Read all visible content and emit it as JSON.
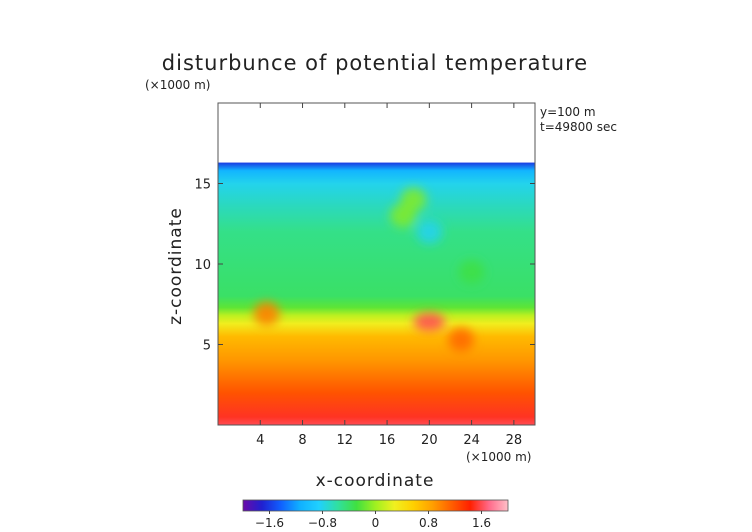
{
  "chart_data": {
    "type": "heatmap",
    "title": "disturbunce of potential temperature",
    "xlabel": "x-coordinate",
    "ylabel": "z-coordinate",
    "x_unit": "(×1000 m)",
    "y_unit": "(×1000 m)",
    "annotations": [
      "y=100 m",
      "t=49800 sec"
    ],
    "xlim": [
      0,
      30
    ],
    "ylim": [
      0,
      20
    ],
    "x_ticks": [
      4,
      8,
      12,
      16,
      20,
      24,
      28
    ],
    "y_ticks": [
      5,
      10,
      15
    ],
    "colorbar": {
      "range": [
        -2,
        2
      ],
      "ticks": [
        -1.6,
        -0.8,
        0,
        0.8,
        1.6
      ],
      "tick_labels": [
        "−1.6",
        "−0.8",
        "0",
        "0.8",
        "1.6"
      ],
      "colors": [
        "#6a0aa8",
        "#2020d0",
        "#1060ff",
        "#10b0ff",
        "#20d0ff",
        "#30e0a0",
        "#40e040",
        "#a0f020",
        "#f0f020",
        "#ffd000",
        "#ffa000",
        "#ff6000",
        "#ff2000",
        "#ff6a8a",
        "#ffc0c8"
      ]
    },
    "field_top_z": 16.3,
    "field_profile": [
      {
        "z": 16.3,
        "value": -1.6
      },
      {
        "z": 15.8,
        "value": -1.1
      },
      {
        "z": 15.0,
        "value": -0.8
      },
      {
        "z": 12.0,
        "value": -0.5
      },
      {
        "z": 8.0,
        "value": -0.4
      },
      {
        "z": 7.3,
        "value": -0.2
      },
      {
        "z": 6.8,
        "value": 0.1
      },
      {
        "z": 6.3,
        "value": 0.3
      },
      {
        "z": 5.5,
        "value": 0.7
      },
      {
        "z": 4.0,
        "value": 0.9
      },
      {
        "z": 2.0,
        "value": 1.2
      },
      {
        "z": 0.5,
        "value": 1.5
      },
      {
        "z": 0.0,
        "value": 1.6
      }
    ],
    "features": [
      {
        "x": 4.6,
        "z": 6.9,
        "value": 1.0
      },
      {
        "x": 20.0,
        "z": 6.4,
        "value": 1.6
      },
      {
        "x": 23.0,
        "z": 5.3,
        "value": 1.1
      },
      {
        "x": 18.5,
        "z": 14.0,
        "value": -0.1
      },
      {
        "x": 17.5,
        "z": 13.0,
        "value": -0.1
      },
      {
        "x": 24.0,
        "z": 9.5,
        "value": -0.3
      },
      {
        "x": 20.0,
        "z": 12.0,
        "value": -0.8
      }
    ]
  }
}
